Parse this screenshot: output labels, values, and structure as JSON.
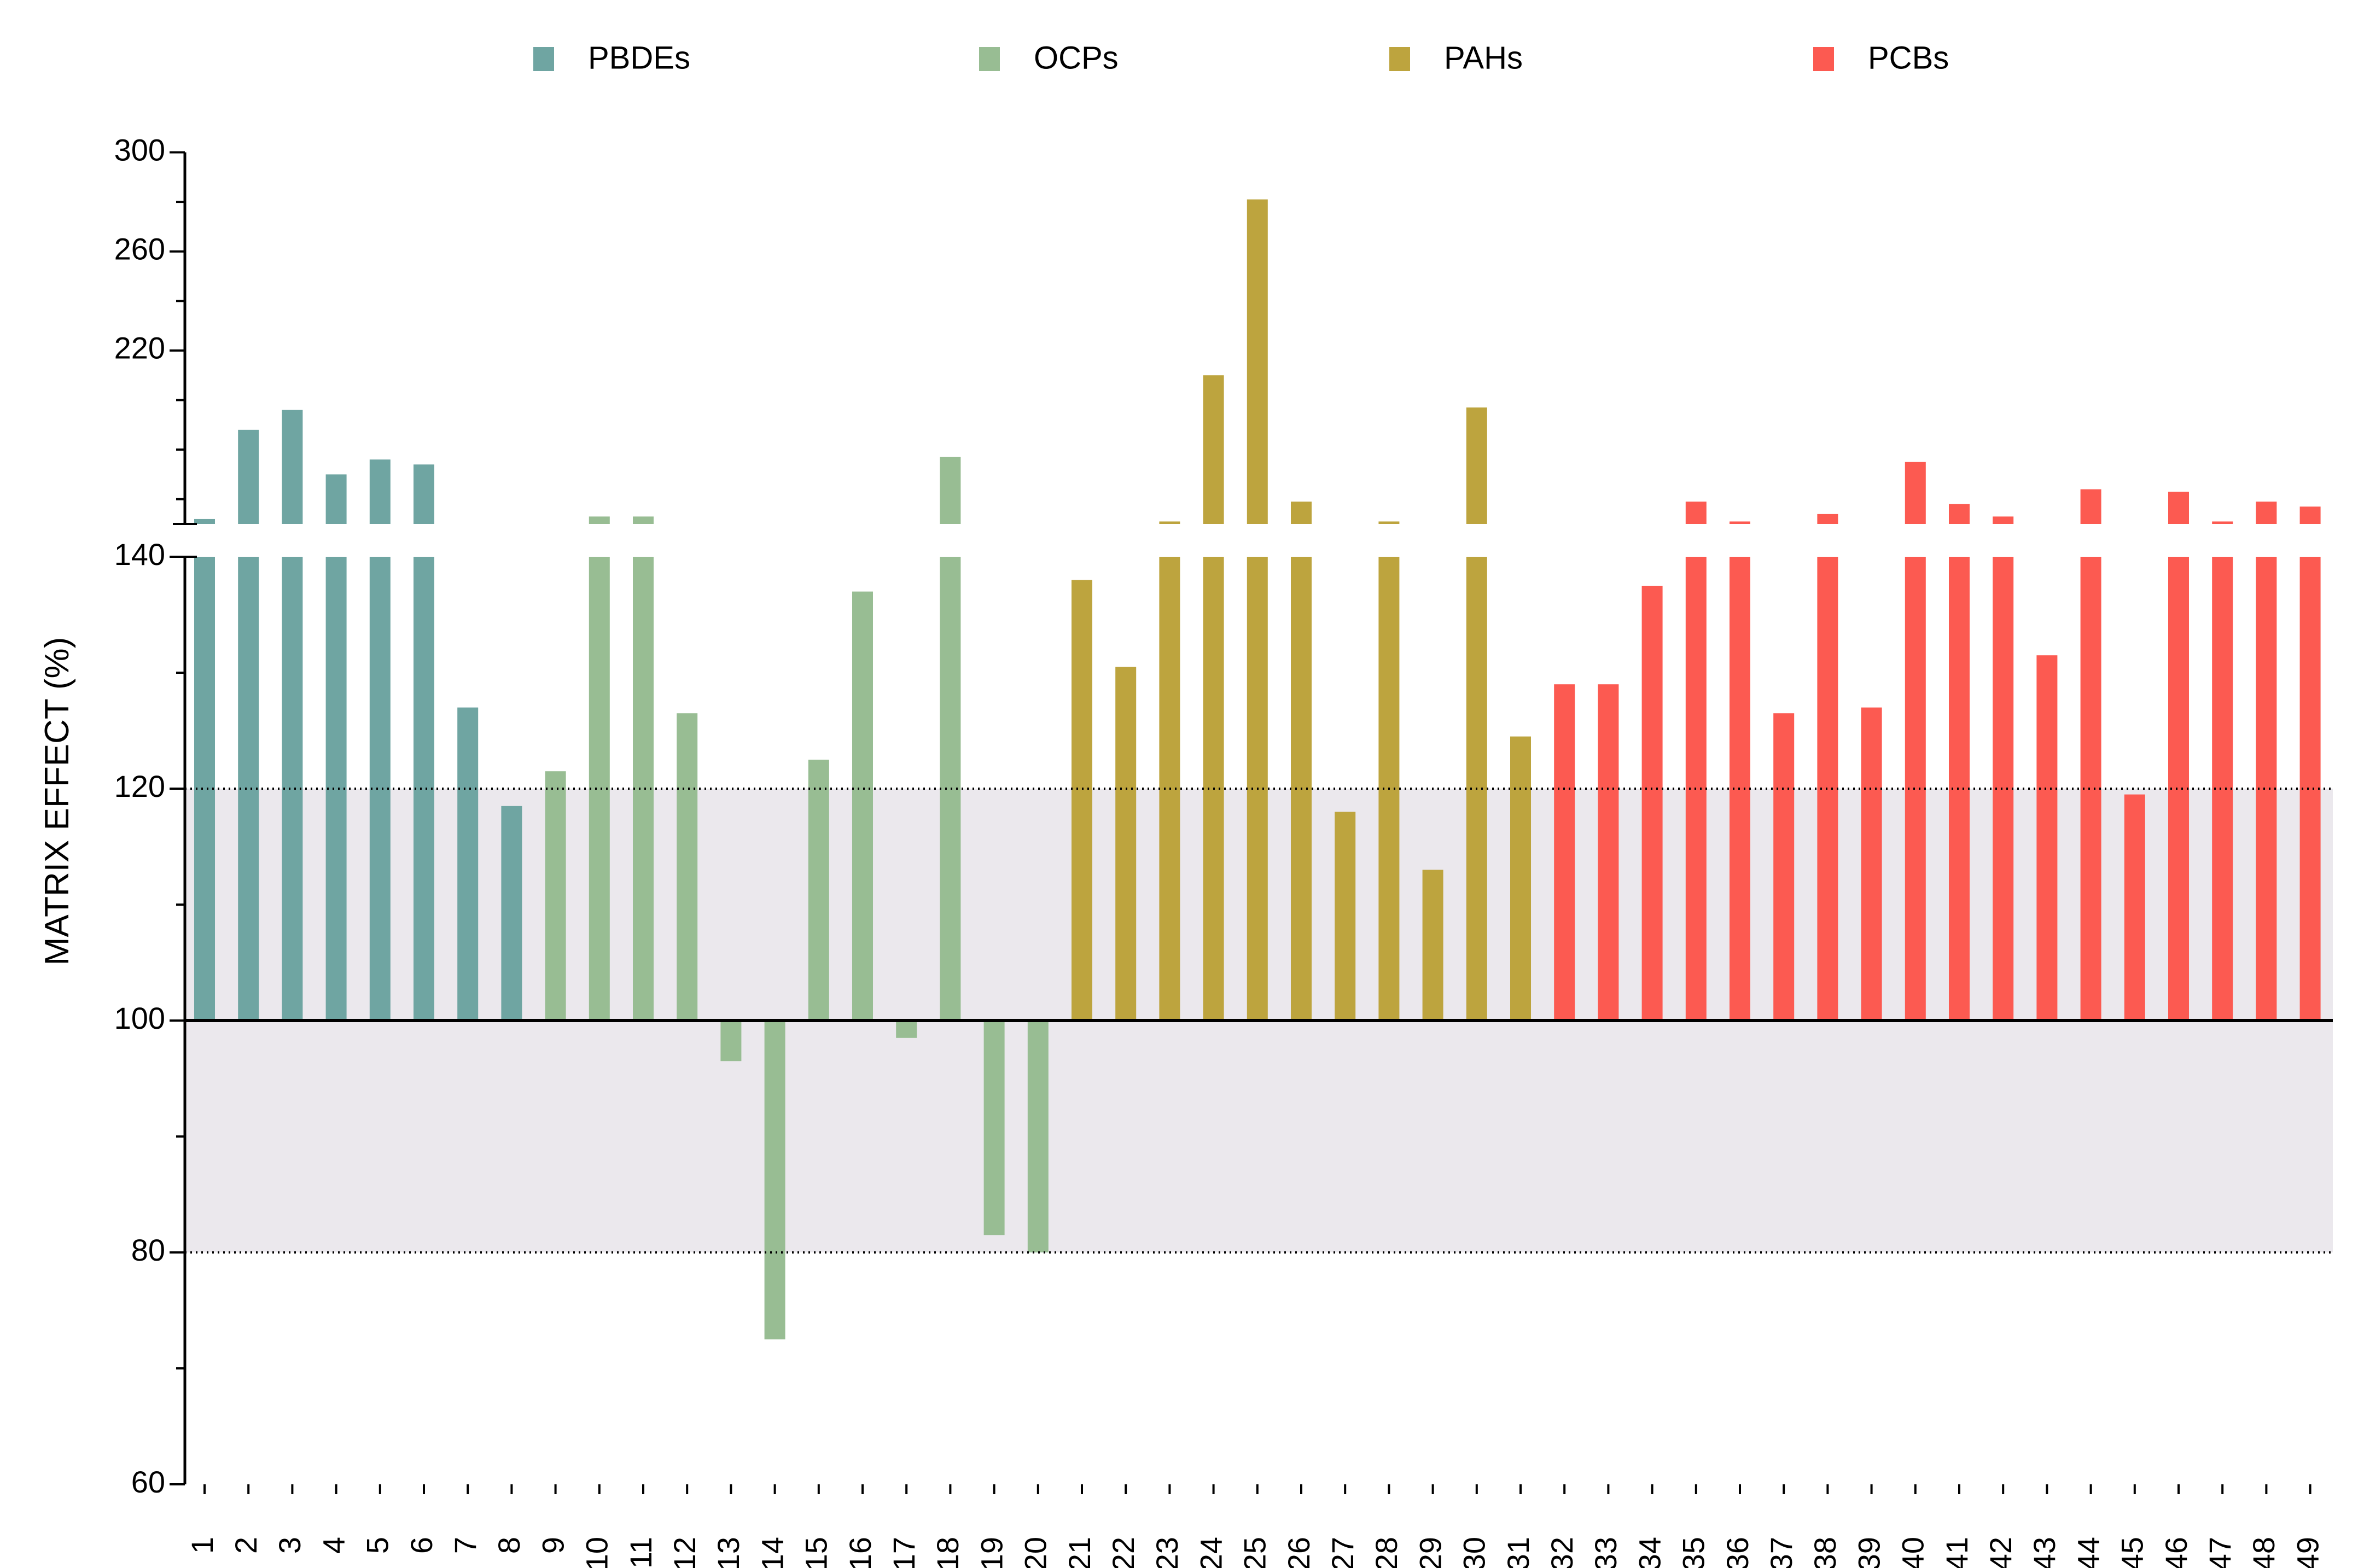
{
  "chart_data": {
    "type": "bar",
    "title": "",
    "xlabel": "",
    "ylabel": "MATRIX EFFECT (%)",
    "ylim": [
      60,
      300
    ],
    "axis_break": [
      140,
      150
    ],
    "upper_ticks": [
      "300",
      "260",
      "220"
    ],
    "lower_ticks": [
      "140",
      "120",
      "100",
      "80",
      "60"
    ],
    "reference_lines": [
      120,
      80
    ],
    "baseline": 100,
    "shaded_band": [
      80,
      120
    ],
    "categories": [
      "1",
      "2",
      "3",
      "4",
      "5",
      "6",
      "7",
      "8",
      "9",
      "10",
      "11",
      "12",
      "13",
      "14",
      "15",
      "16",
      "17",
      "18",
      "19",
      "20",
      "21",
      "22",
      "23",
      "24",
      "25",
      "26",
      "27",
      "28",
      "29",
      "30",
      "31",
      "32",
      "33",
      "34",
      "35",
      "36",
      "37",
      "38",
      "39",
      "40",
      "41",
      "42",
      "43",
      "44",
      "45",
      "46",
      "47",
      "48",
      "49"
    ],
    "values": [
      152,
      188,
      196,
      170,
      176,
      174,
      127,
      118.5,
      121.5,
      153,
      153,
      126.5,
      96.5,
      72.5,
      122.5,
      137,
      98.5,
      177,
      81.5,
      80,
      138,
      130.5,
      151,
      210,
      281,
      159,
      118,
      151,
      113,
      197,
      124.5,
      129,
      129,
      137.5,
      159,
      151,
      126.5,
      154,
      127,
      175,
      158,
      153,
      131.5,
      164,
      119.5,
      163,
      151,
      159,
      157
    ],
    "groups": [
      "PBDEs",
      "PBDEs",
      "PBDEs",
      "PBDEs",
      "PBDEs",
      "PBDEs",
      "PBDEs",
      "PBDEs",
      "OCPs",
      "OCPs",
      "OCPs",
      "OCPs",
      "OCPs",
      "OCPs",
      "OCPs",
      "OCPs",
      "OCPs",
      "OCPs",
      "OCPs",
      "OCPs",
      "PAHs",
      "PAHs",
      "PAHs",
      "PAHs",
      "PAHs",
      "PAHs",
      "PAHs",
      "PAHs",
      "PAHs",
      "PAHs",
      "PAHs",
      "PCBs",
      "PCBs",
      "PCBs",
      "PCBs",
      "PCBs",
      "PCBs",
      "PCBs",
      "PCBs",
      "PCBs",
      "PCBs",
      "PCBs",
      "PCBs",
      "PCBs",
      "PCBs",
      "PCBs",
      "PCBs",
      "PCBs",
      "PCBs"
    ],
    "legend": [
      {
        "name": "PBDEs",
        "color": "#6fa5a2"
      },
      {
        "name": "OCPs",
        "color": "#98bd93"
      },
      {
        "name": "PAHs",
        "color": "#bda43e"
      },
      {
        "name": "PCBs",
        "color": "#fc5a51"
      }
    ],
    "band_color": "#ebe8ed",
    "legend_position": "top"
  }
}
